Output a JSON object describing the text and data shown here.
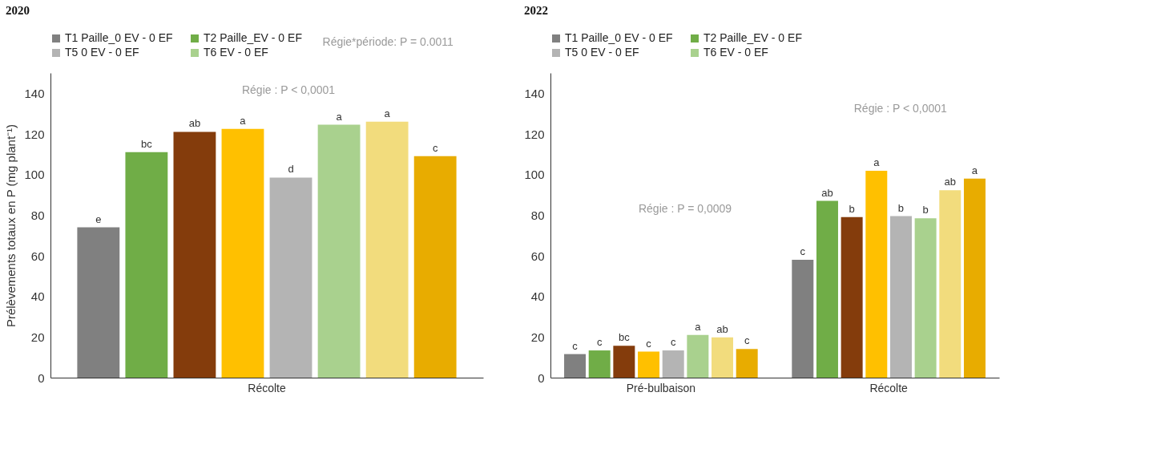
{
  "chart_data": [
    {
      "type": "bar",
      "title": "2020",
      "ylabel": "Prélèvements totaux en P (mg plant⁻¹)",
      "categories": [
        "Récolte"
      ],
      "ylim": [
        0,
        150
      ],
      "yticks": [
        0,
        20,
        40,
        60,
        80,
        100,
        120,
        140
      ],
      "grid": false,
      "legend": "top",
      "annotations": [
        "Régie*période: P = 0.0011",
        "Régie : P < 0,0001"
      ],
      "series": [
        {
          "name": "T1 Paille_0 EV - 0 EF",
          "color": "#808080",
          "values": [
            74
          ],
          "value_labels": [
            "e"
          ]
        },
        {
          "name": "T2 Paille_EV - 0 EF",
          "color": "#70ad47",
          "values": [
            111
          ],
          "value_labels": [
            "bc"
          ]
        },
        {
          "color": "#843c0c",
          "values": [
            121
          ],
          "value_labels": [
            "ab"
          ]
        },
        {
          "color": "#ffc000",
          "values": [
            122.5
          ],
          "value_labels": [
            "a"
          ]
        },
        {
          "name": "T5 0 EV - 0 EF",
          "color": "#b4b4b4",
          "values": [
            98.5
          ],
          "value_labels": [
            "d"
          ]
        },
        {
          "name": "T6 EV - 0 EF",
          "color": "#a9d18e",
          "values": [
            124.5
          ],
          "value_labels": [
            "a"
          ]
        },
        {
          "color": "#f2dc7d",
          "values": [
            126
          ],
          "value_labels": [
            "a"
          ]
        },
        {
          "color": "#e8ac00",
          "values": [
            109
          ],
          "value_labels": [
            "c"
          ]
        }
      ]
    },
    {
      "type": "bar",
      "title": "2022",
      "categories": [
        "Pré-bulbaison",
        "Récolte"
      ],
      "ylim": [
        0,
        150
      ],
      "yticks": [
        0,
        20,
        40,
        60,
        80,
        100,
        120,
        140
      ],
      "grid": false,
      "legend": "top",
      "annotations": [
        "Régie : P = 0,0009",
        "Régie : P < 0,0001"
      ],
      "series": [
        {
          "name": "T1 Paille_0 EV - 0 EF",
          "color": "#808080",
          "values": [
            11.6,
            58
          ],
          "value_labels": [
            "c",
            "c"
          ]
        },
        {
          "name": "T2 Paille_EV - 0 EF",
          "color": "#70ad47",
          "values": [
            13.4,
            87
          ],
          "value_labels": [
            "c",
            "ab"
          ]
        },
        {
          "color": "#843c0c",
          "values": [
            15.7,
            79
          ],
          "value_labels": [
            "bc",
            "b"
          ]
        },
        {
          "color": "#ffc000",
          "values": [
            12.8,
            101.8
          ],
          "value_labels": [
            "c",
            "a"
          ]
        },
        {
          "name": "T5 0 EV - 0 EF",
          "color": "#b4b4b4",
          "values": [
            13.4,
            79.5
          ],
          "value_labels": [
            "c",
            "b"
          ]
        },
        {
          "name": "T6 EV - 0 EF",
          "color": "#a9d18e",
          "values": [
            21,
            78.5
          ],
          "value_labels": [
            "a",
            "b"
          ]
        },
        {
          "color": "#f2dc7d",
          "values": [
            19.8,
            92.3
          ],
          "value_labels": [
            "ab",
            "ab"
          ]
        },
        {
          "color": "#e8ac00",
          "values": [
            14.1,
            98
          ],
          "value_labels": [
            "c",
            "a"
          ]
        }
      ]
    }
  ]
}
